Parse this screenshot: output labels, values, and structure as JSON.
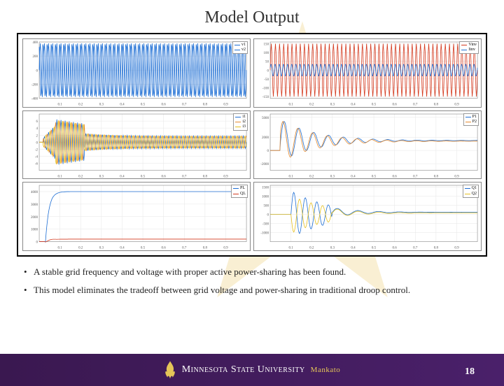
{
  "title": "Model Output",
  "bullets": [
    "A stable grid frequency and voltage with proper active power-sharing has been found.",
    "This model eliminates the tradeoff between grid voltage and power-sharing in traditional droop control."
  ],
  "footer": {
    "university": "Minnesota State University",
    "campus": "Mankato"
  },
  "page_number": "18",
  "colors": {
    "frame_border": "#000000",
    "subplot_border": "#888888",
    "grid": "#e6e6e6",
    "series_blue": "#1f6fd4",
    "series_red": "#d43a1f",
    "series_orange": "#e68a2e",
    "series_yellow": "#e6c01f",
    "footer_bg_left": "#3a1850",
    "footer_bg_right": "#4a206a",
    "footer_accent": "#e5c558",
    "star_fill": "#e8c352"
  },
  "charts": {
    "xaxis": {
      "ticks": [
        "0.1",
        "0.2",
        "0.3",
        "0.4",
        "0.5",
        "0.6",
        "0.7",
        "0.8",
        "0.9"
      ],
      "xlim": [
        0,
        1
      ]
    },
    "left_top": {
      "type": "line",
      "ylim": [
        -400,
        400
      ],
      "yticks": [
        -400,
        -200,
        0,
        200,
        400
      ],
      "series": [
        {
          "name": "v1",
          "color": "#1f6fd4",
          "amp": 380,
          "freq": 50,
          "phase": 0
        },
        {
          "name": "v2",
          "color": "#1f6fd4",
          "amp": 380,
          "freq": 50,
          "phase": 2.09
        }
      ],
      "legend": [
        "v1",
        "v2"
      ]
    },
    "right_top": {
      "type": "line",
      "ylim": [
        -160,
        160
      ],
      "yticks": [
        -150,
        -100,
        -50,
        0,
        50,
        100,
        150
      ],
      "series": [
        {
          "name": "Vinv",
          "color": "#d43a1f",
          "amp": 150,
          "freq": 50,
          "phase": 0
        },
        {
          "name": "Iinv",
          "color": "#1f6fd4",
          "amp": 35,
          "freq": 50,
          "phase": 0.4
        }
      ],
      "legend": [
        "Vinv",
        "Iinv"
      ]
    },
    "left_mid": {
      "type": "line",
      "ylim": [
        -8,
        8
      ],
      "yticks": [
        -6,
        -4,
        -2,
        0,
        2,
        4,
        6
      ],
      "series": [
        {
          "name": "i1",
          "color": "#1f6fd4"
        },
        {
          "name": "i2",
          "color": "#e68a2e"
        },
        {
          "name": "i3",
          "color": "#e6c01f"
        }
      ],
      "legend": [
        "i1",
        "i2",
        "i3"
      ]
    },
    "right_mid": {
      "type": "line",
      "ylim": [
        -3000,
        5500
      ],
      "yticks": [
        -2000,
        0,
        2000,
        5000
      ],
      "series": [
        {
          "name": "P1",
          "color": "#1f6fd4"
        },
        {
          "name": "P2",
          "color": "#e68a2e"
        }
      ],
      "legend": [
        "P1",
        "P2"
      ]
    },
    "left_bot": {
      "type": "line",
      "ylim": [
        0,
        4500
      ],
      "yticks": [
        0,
        1000,
        2000,
        3000,
        4000
      ],
      "series": [
        {
          "name": "PL",
          "color": "#1f6fd4",
          "steady": 4000
        },
        {
          "name": "QL",
          "color": "#d43a1f",
          "steady": 200
        }
      ],
      "legend": [
        "PL",
        "QL"
      ]
    },
    "right_bot": {
      "type": "line",
      "ylim": [
        -1500,
        1600
      ],
      "yticks": [
        -1000,
        -500,
        0,
        500,
        1000,
        1500
      ],
      "series": [
        {
          "name": "Q1",
          "color": "#1f6fd4"
        },
        {
          "name": "Q2",
          "color": "#e6c01f"
        }
      ],
      "legend": [
        "Q1",
        "Q2"
      ]
    }
  }
}
